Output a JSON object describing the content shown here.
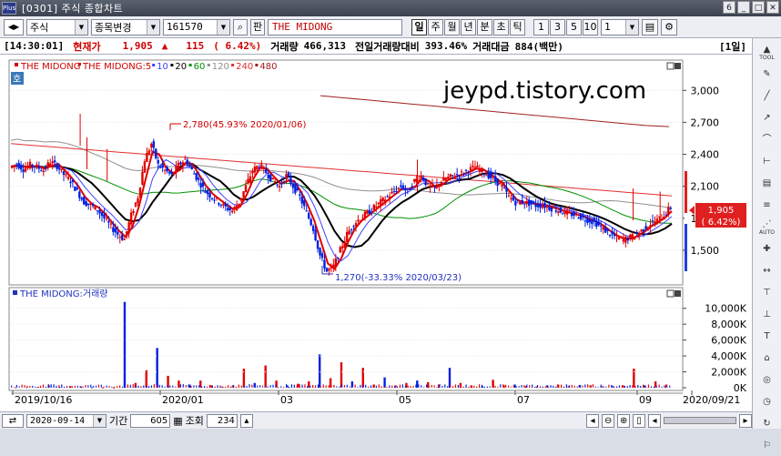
{
  "window": {
    "title_code": "[0301]",
    "title_text": "주식 종합차트",
    "app_logo": "Plus",
    "window_index": "6"
  },
  "toolbar": {
    "market_select": "주식",
    "mode_select": "종목변경",
    "code_input": "161570",
    "pan_label": "판",
    "stock_name": "THE MIDONG",
    "period_buttons": [
      "일",
      "주",
      "월",
      "년",
      "분",
      "초",
      "틱"
    ],
    "period_active": "일",
    "num_buttons": [
      "1",
      "3",
      "5",
      "10"
    ],
    "num_select": "1"
  },
  "status": {
    "time": "[14:30:01]",
    "price_label": "현재가",
    "price": "1,905",
    "change_arrow": "▲",
    "change": "115",
    "change_pct": "( 6.42%)",
    "volume_label": "거래량",
    "volume": "466,313",
    "prev_vol_label": "전일거래량대비",
    "prev_vol_ratio": "393.46%",
    "amount_label": "거래대금",
    "amount": "884(백만)",
    "period_badge": "[1일]"
  },
  "price_panel": {
    "legend": [
      {
        "label": "THE MIDONG",
        "color": "#d00000"
      },
      {
        "label": "THE MIDONG:5",
        "color": "#d00000"
      },
      {
        "label": "10",
        "color": "#4040ff"
      },
      {
        "label": "20",
        "color": "#000000"
      },
      {
        "label": "60",
        "color": "#009000"
      },
      {
        "label": "120",
        "color": "#909090"
      },
      {
        "label": "240",
        "color": "#e03030"
      },
      {
        "label": "480",
        "color": "#a02020"
      }
    ],
    "tag": "호",
    "watermark": "jeypd.tistory.com",
    "y_ticks": [
      "3,000",
      "2,700",
      "2,400",
      "2,100",
      "1,800",
      "1,500"
    ],
    "current_price_tag": [
      "1,905",
      "( 6.42%)"
    ],
    "annotation_high": "2,780(45.93% 2020/01/06)",
    "annotation_low": "1,270(-33.33% 2020/03/23)"
  },
  "volume_panel": {
    "legend": "THE MIDONG:거래량",
    "y_ticks": [
      "10,000K",
      "8,000K",
      "6,000K",
      "4,000K",
      "2,000K",
      "0K"
    ]
  },
  "x_axis": {
    "labels": [
      "2019/10/16",
      "2020/01",
      "03",
      "05",
      "07",
      "09",
      "2020/09/21"
    ]
  },
  "bottom": {
    "date": "2020-09-14",
    "period_label": "기간",
    "period_value": "605",
    "lookup_label": "조회",
    "lookup_value": "234"
  },
  "sidebar": {
    "items": [
      "TOOL",
      "",
      "",
      "",
      "",
      "",
      "",
      "",
      "AUTO",
      "",
      "",
      "",
      "",
      "",
      "",
      "",
      "",
      "",
      ""
    ]
  },
  "chart_data": {
    "type": "candlestick",
    "ylim": [
      1200,
      3250
    ],
    "y_ticks": [
      1500,
      1800,
      2100,
      2400,
      2700,
      3000
    ],
    "x_labels": [
      "2019/10/16",
      "2020/01",
      "03",
      "05",
      "07",
      "09",
      "2020/09/21"
    ],
    "current_price": 1905,
    "high_annotation": {
      "value": 2780,
      "date": "2020/01/06"
    },
    "low_annotation": {
      "value": 1270,
      "date": "2020/03/23"
    },
    "close_path": [
      2280,
      2310,
      2260,
      2300,
      2280,
      2250,
      2330,
      2290,
      2210,
      2150,
      2050,
      1950,
      1920,
      1880,
      1800,
      1720,
      1650,
      1600,
      1830,
      2000,
      2350,
      2500,
      2300,
      2250,
      2200,
      2300,
      2350,
      2250,
      2150,
      2050,
      2000,
      1950,
      1900,
      1870,
      1950,
      2100,
      2250,
      2300,
      2230,
      2150,
      2100,
      2200,
      2100,
      2000,
      1850,
      1700,
      1450,
      1300,
      1350,
      1500,
      1650,
      1750,
      1800,
      1850,
      1900,
      1950,
      2000,
      2050,
      2100,
      2050,
      2150,
      2200,
      2100,
      2080,
      2150,
      2180,
      2200,
      2220,
      2250,
      2280,
      2240,
      2200,
      2150,
      2100,
      2000,
      1950,
      1950,
      1940,
      1920,
      1920,
      1900,
      1880,
      1860,
      1840,
      1830,
      1800,
      1780,
      1750,
      1700,
      1650,
      1620,
      1600,
      1620,
      1650,
      1700,
      1750,
      1780,
      1830,
      1905
    ],
    "ma480": [
      2950,
      2930,
      2910,
      2890,
      2870,
      2850,
      2830,
      2810,
      2790,
      2770,
      2750,
      2730,
      2710,
      2690,
      2670,
      2660
    ],
    "volume_k": [
      50,
      80,
      120,
      300,
      90,
      200,
      150,
      60,
      40,
      30,
      10800,
      600,
      2200,
      5000,
      1500,
      900,
      400,
      900,
      300,
      150,
      300,
      2400,
      600,
      2800,
      900,
      300,
      500,
      800,
      4200,
      1200,
      3200,
      800,
      2500,
      400,
      1300,
      300,
      600,
      900,
      700,
      400,
      2500,
      600,
      300,
      200,
      1000,
      300,
      400,
      200,
      150,
      300,
      400,
      200,
      350,
      300,
      200,
      250,
      300,
      2400,
      300,
      800,
      400
    ]
  }
}
